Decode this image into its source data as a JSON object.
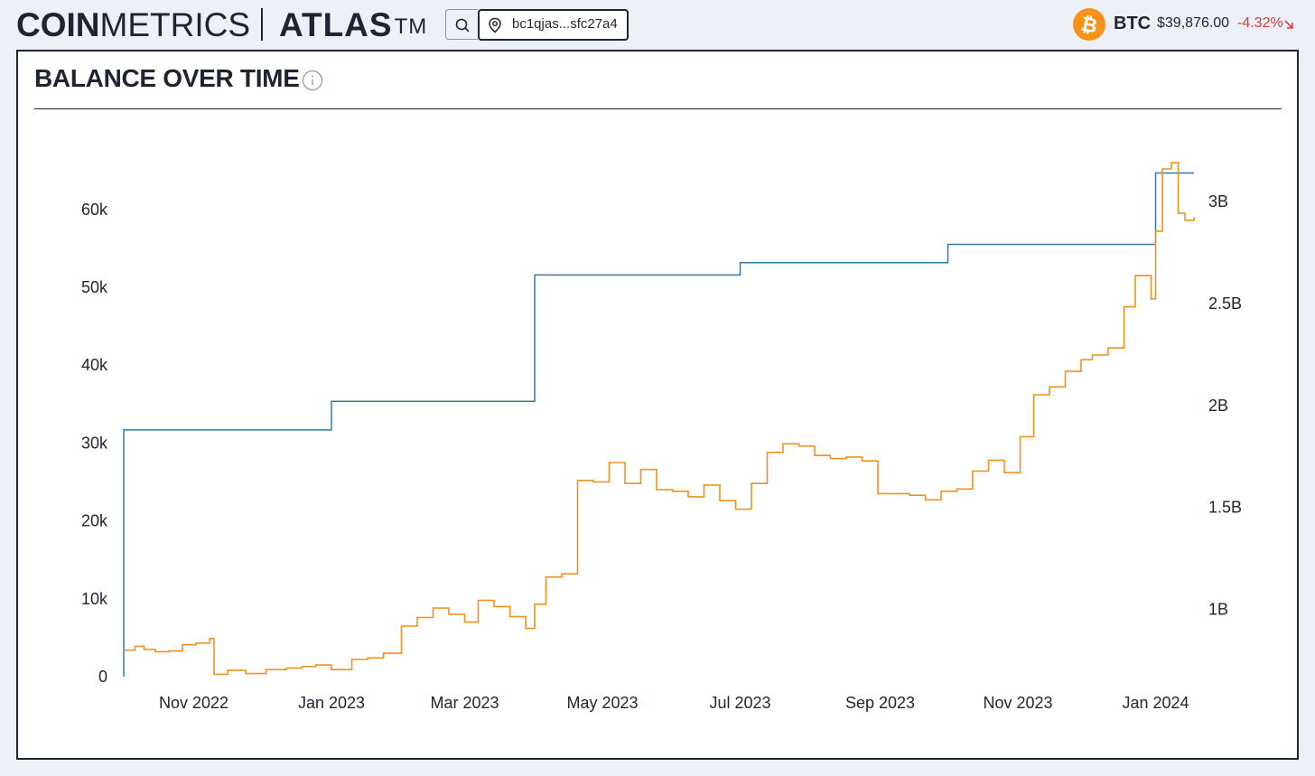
{
  "header": {
    "logo_bold": "COIN",
    "logo_light": "METRICS",
    "product": "ATLAS",
    "product_mark": "TM",
    "address": "bc1qjas...sfc27a4",
    "asset_symbol": "BTC",
    "asset_price": "$39,876.00",
    "asset_change": "-4.32%",
    "icons": [
      "search-icon",
      "location-pin-icon",
      "bitcoin-icon",
      "arrow-down-right-icon"
    ]
  },
  "panel": {
    "title": "BALANCE OVER TIME",
    "icons": [
      "info-icon"
    ]
  },
  "colors": {
    "balance_line": "#2b7bab",
    "price_line": "#f0921e",
    "negative": "#d93b3b",
    "btc_orange": "#f7931a"
  },
  "chart_data": {
    "type": "line",
    "title": "BALANCE OVER TIME",
    "xlabel": "",
    "ylabel": "",
    "x_ticks": [
      "Nov 2022",
      "Jan 2023",
      "Mar 2023",
      "May 2023",
      "Jul 2023",
      "Sep 2023",
      "Nov 2023",
      "Jan 2024"
    ],
    "y_left_ticks": [
      "0",
      "10k",
      "20k",
      "30k",
      "40k",
      "50k",
      "60k"
    ],
    "y_right_ticks": [
      "1B",
      "1.5B",
      "2B",
      "2.5B",
      "3B"
    ],
    "ylim_left": [
      0,
      67000
    ],
    "ylim_right": [
      670000000,
      3200000000
    ],
    "grid": false,
    "legend": "none",
    "series": [
      {
        "axis": "right",
        "step": true,
        "points": [
          [
            "2022-10-01",
            670000000
          ],
          [
            "2022-10-01",
            1880000000
          ],
          [
            "2023-01-01",
            1880000000
          ],
          [
            "2023-01-01",
            2020000000
          ],
          [
            "2023-04-01",
            2020000000
          ],
          [
            "2023-04-01",
            2640000000
          ],
          [
            "2023-07-01",
            2640000000
          ],
          [
            "2023-07-01",
            2700000000
          ],
          [
            "2023-10-01",
            2700000000
          ],
          [
            "2023-10-01",
            2790000000
          ],
          [
            "2024-01-01",
            2790000000
          ],
          [
            "2024-01-01",
            3140000000
          ],
          [
            "2024-01-18",
            3140000000
          ]
        ]
      },
      {
        "axis": "left",
        "step": true,
        "points": [
          [
            "2022-10-01",
            3400
          ],
          [
            "2022-10-06",
            3900
          ],
          [
            "2022-10-10",
            3500
          ],
          [
            "2022-10-15",
            3200
          ],
          [
            "2022-10-21",
            3300
          ],
          [
            "2022-10-27",
            4100
          ],
          [
            "2022-11-02",
            4300
          ],
          [
            "2022-11-08",
            4900
          ],
          [
            "2022-11-10",
            300
          ],
          [
            "2022-11-16",
            800
          ],
          [
            "2022-11-24",
            400
          ],
          [
            "2022-12-03",
            900
          ],
          [
            "2022-12-12",
            1100
          ],
          [
            "2022-12-19",
            1300
          ],
          [
            "2022-12-25",
            1500
          ],
          [
            "2023-01-01",
            900
          ],
          [
            "2023-01-10",
            2200
          ],
          [
            "2023-01-17",
            2400
          ],
          [
            "2023-01-24",
            3000
          ],
          [
            "2023-02-01",
            6500
          ],
          [
            "2023-02-08",
            7600
          ],
          [
            "2023-02-15",
            8800
          ],
          [
            "2023-02-22",
            8000
          ],
          [
            "2023-03-01",
            7000
          ],
          [
            "2023-03-07",
            9800
          ],
          [
            "2023-03-14",
            9000
          ],
          [
            "2023-03-21",
            7700
          ],
          [
            "2023-03-28",
            6200
          ],
          [
            "2023-04-01",
            9300
          ],
          [
            "2023-04-06",
            12800
          ],
          [
            "2023-04-13",
            13200
          ],
          [
            "2023-04-20",
            25200
          ],
          [
            "2023-04-27",
            25000
          ],
          [
            "2023-05-04",
            27500
          ],
          [
            "2023-05-11",
            24800
          ],
          [
            "2023-05-18",
            26600
          ],
          [
            "2023-05-25",
            24000
          ],
          [
            "2023-06-01",
            23800
          ],
          [
            "2023-06-08",
            23100
          ],
          [
            "2023-06-15",
            24600
          ],
          [
            "2023-06-22",
            22600
          ],
          [
            "2023-06-29",
            21500
          ],
          [
            "2023-07-06",
            24800
          ],
          [
            "2023-07-13",
            28800
          ],
          [
            "2023-07-20",
            29900
          ],
          [
            "2023-07-27",
            29600
          ],
          [
            "2023-08-03",
            28400
          ],
          [
            "2023-08-10",
            28000
          ],
          [
            "2023-08-17",
            28200
          ],
          [
            "2023-08-24",
            27700
          ],
          [
            "2023-08-31",
            23500
          ],
          [
            "2023-09-07",
            23500
          ],
          [
            "2023-09-14",
            23300
          ],
          [
            "2023-09-21",
            22700
          ],
          [
            "2023-09-28",
            23800
          ],
          [
            "2023-10-05",
            24100
          ],
          [
            "2023-10-12",
            26400
          ],
          [
            "2023-10-19",
            27800
          ],
          [
            "2023-10-26",
            26200
          ],
          [
            "2023-11-02",
            30800
          ],
          [
            "2023-11-08",
            36200
          ],
          [
            "2023-11-15",
            37200
          ],
          [
            "2023-11-22",
            39200
          ],
          [
            "2023-11-29",
            40700
          ],
          [
            "2023-12-04",
            41300
          ],
          [
            "2023-12-11",
            42200
          ],
          [
            "2023-12-18",
            47500
          ],
          [
            "2023-12-23",
            51500
          ],
          [
            "2023-12-30",
            48500
          ],
          [
            "2024-01-01",
            57200
          ],
          [
            "2024-01-04",
            65200
          ],
          [
            "2024-01-08",
            66000
          ],
          [
            "2024-01-11",
            59500
          ],
          [
            "2024-01-14",
            58600
          ],
          [
            "2024-01-18",
            59000
          ]
        ]
      }
    ]
  }
}
